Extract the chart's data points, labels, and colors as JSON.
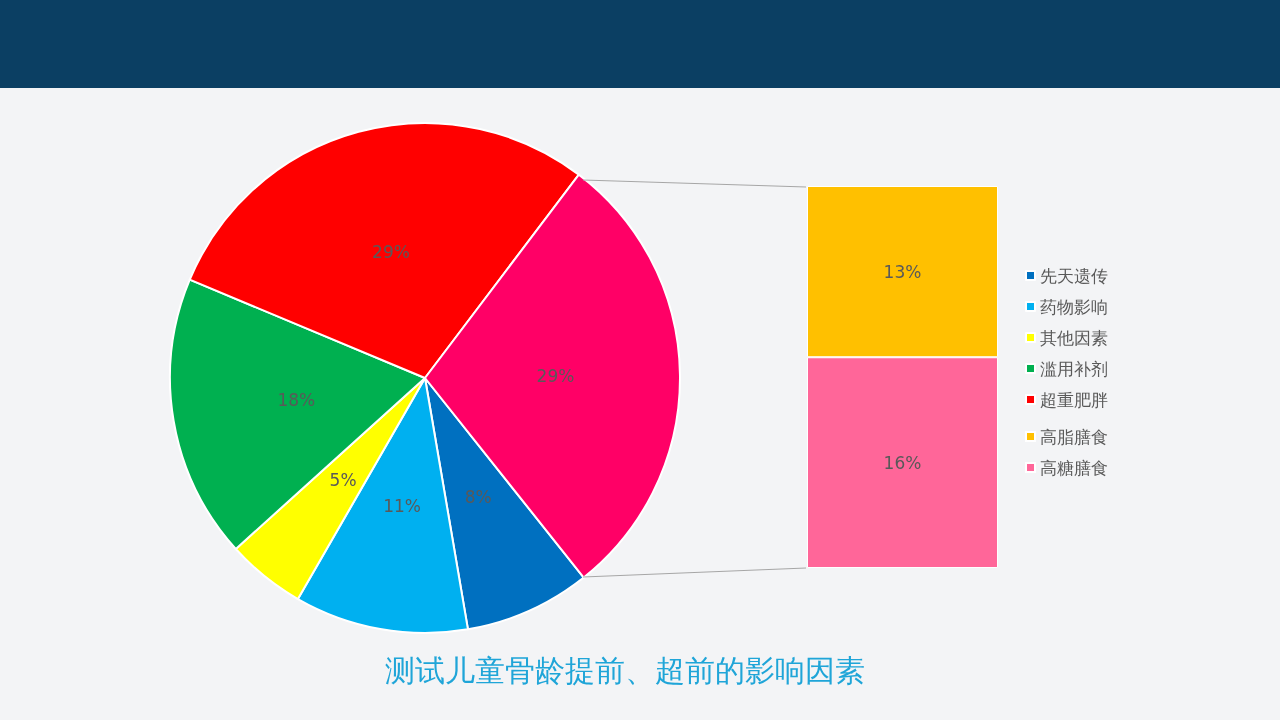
{
  "chart_data": [
    {
      "type": "pie",
      "title": "测试儿童骨龄提前、超前的影响因素",
      "categories": [
        "先天遗传",
        "药物影响",
        "其他因素",
        "滥用补剂",
        "超重肥胖",
        null
      ],
      "values": [
        8,
        11,
        5,
        18,
        29,
        29
      ],
      "value_labels": [
        "8%",
        "11%",
        "5%",
        "18%",
        "29%",
        "29%"
      ],
      "colors": [
        "#0070c0",
        "#00b0f0",
        "#ffff00",
        "#00b050",
        "#ff0000",
        "#ff0066"
      ],
      "legend": "right"
    },
    {
      "type": "bar",
      "stacked": true,
      "categories": [
        null
      ],
      "series": [
        {
          "name": "高糖膳食",
          "color": "#ff6699",
          "values": [
            16
          ],
          "value_labels": [
            "16%"
          ]
        },
        {
          "name": "高脂膳食",
          "color": "#ffc000",
          "values": [
            13
          ],
          "value_labels": [
            "13%"
          ]
        }
      ],
      "legend": "right"
    }
  ]
}
